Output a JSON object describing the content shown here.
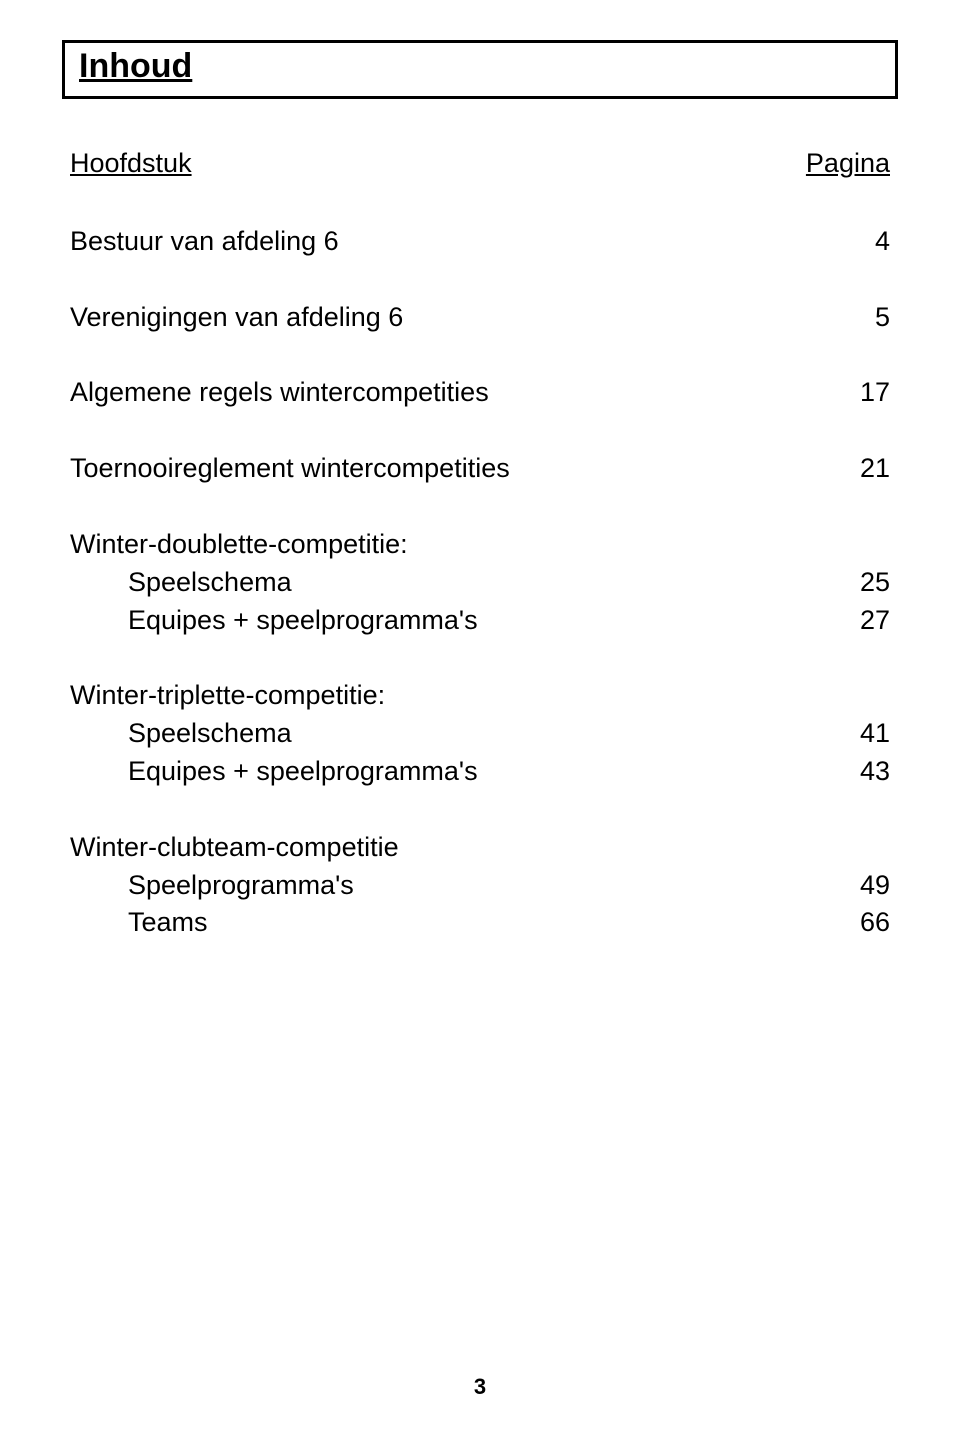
{
  "title": "Inhoud",
  "header": {
    "section": "Hoofdstuk",
    "page": "Pagina"
  },
  "rows": [
    {
      "type": "row",
      "section": "Bestuur van afdeling 6",
      "page": "4"
    },
    {
      "type": "row",
      "section": "Verenigingen van afdeling 6",
      "page": "5"
    },
    {
      "type": "row",
      "section": "Algemene regels wintercompetities",
      "page": "17"
    },
    {
      "type": "row",
      "section": "Toernooireglement wintercompetities",
      "page": "21"
    },
    {
      "type": "group",
      "section": "Winter-doublette-competitie:",
      "items": [
        {
          "section": "Speelschema",
          "page": "25"
        },
        {
          "section": "Equipes + speelprogramma's",
          "page": "27"
        }
      ]
    },
    {
      "type": "group",
      "section": "Winter-triplette-competitie:",
      "items": [
        {
          "section": "Speelschema",
          "page": "41"
        },
        {
          "section": "Equipes + speelprogramma's",
          "page": "43"
        }
      ]
    },
    {
      "type": "group",
      "section": "Winter-clubteam-competitie",
      "items": [
        {
          "section": "Speelprogramma's",
          "page": "49"
        },
        {
          "section": "Teams",
          "page": "66"
        }
      ]
    }
  ],
  "pageNumber": "3"
}
